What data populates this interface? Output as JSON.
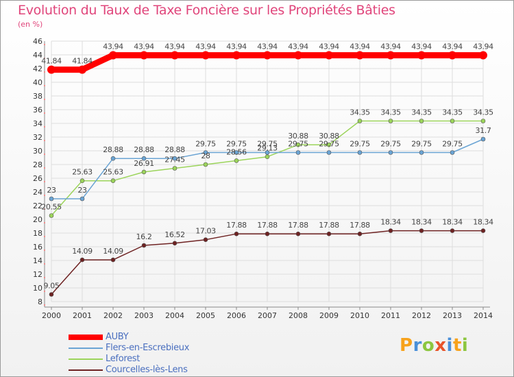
{
  "header": {
    "title": "Evolution du Taux de Taxe Foncière sur les Propriétés Bâties",
    "unit": "(en %)"
  },
  "logo": {
    "text": "Proxiti",
    "letters": [
      "P",
      "r",
      "o",
      "x",
      "i",
      "t",
      "i"
    ],
    "colors": [
      "#f7a21b",
      "#4a90d9",
      "#8cc63f",
      "#e8542a",
      "#4a90d9",
      "#f7a21b",
      "#8cc63f"
    ]
  },
  "chart_data": {
    "type": "line",
    "title": "Evolution du Taux de Taxe Foncière sur les Propriétés Bâties",
    "ylabel": "(en %)",
    "xlabel": "",
    "ylim": [
      8,
      46
    ],
    "yticks": [
      8,
      10,
      12,
      14,
      16,
      18,
      20,
      22,
      24,
      26,
      28,
      30,
      32,
      34,
      36,
      38,
      40,
      42,
      44,
      46
    ],
    "x": [
      "2000",
      "2001",
      "2002",
      "2003",
      "2004",
      "2005",
      "2006",
      "2007",
      "2008",
      "2009",
      "2010",
      "2011",
      "2012",
      "2013",
      "2014"
    ],
    "grid": true,
    "legend_position": "bottom-left",
    "series": [
      {
        "name": "AUBY",
        "color": "#ff0000",
        "values": [
          41.84,
          41.84,
          43.94,
          43.94,
          43.94,
          43.94,
          43.94,
          43.94,
          43.94,
          43.94,
          43.94,
          43.94,
          43.94,
          43.94,
          43.94
        ],
        "labels": [
          "41.84",
          "41.84",
          "43.94",
          "43.94",
          "43.94",
          "43.94",
          "43.94",
          "43.94",
          "43.94",
          "43.94",
          "43.94",
          "43.94",
          "43.94",
          "43.94",
          "43.94"
        ]
      },
      {
        "name": "Flers-en-Escrebieux",
        "color": "#6aa4d4",
        "values": [
          23,
          23,
          28.88,
          28.88,
          28.88,
          29.75,
          29.75,
          29.75,
          29.75,
          29.75,
          29.75,
          29.75,
          29.75,
          29.75,
          31.7
        ],
        "labels": [
          "23",
          "23",
          "28.88",
          "28.88",
          "28.88",
          "29.75",
          "29.75",
          "29.75",
          "29.75",
          "29.75",
          "29.75",
          "29.75",
          "29.75",
          "29.75",
          "31.7"
        ]
      },
      {
        "name": "Leforest",
        "color": "#9bd45a",
        "values": [
          20.55,
          25.63,
          25.63,
          26.91,
          27.45,
          28,
          28.56,
          29.13,
          30.88,
          30.88,
          34.35,
          34.35,
          34.35,
          34.35,
          34.35
        ],
        "labels": [
          "20.55",
          "25.63",
          "25.63",
          "26.91",
          "27.45",
          "28",
          "28.56",
          "29.13",
          "30.88",
          "30.88",
          "34.35",
          "34.35",
          "34.35",
          "34.35",
          "34.35"
        ]
      },
      {
        "name": "Courcelles-lès-Lens",
        "color": "#6e2222",
        "values": [
          9.05,
          14.09,
          14.09,
          16.2,
          16.52,
          17.03,
          17.88,
          17.88,
          17.88,
          17.88,
          17.88,
          18.34,
          18.34,
          18.34,
          18.34
        ],
        "labels": [
          "9.05",
          "14.09",
          "14.09",
          "16.2",
          "16.52",
          "17.03",
          "17.88",
          "17.88",
          "17.88",
          "17.88",
          "17.88",
          "18.34",
          "18.34",
          "18.34",
          "18.34"
        ]
      }
    ]
  }
}
